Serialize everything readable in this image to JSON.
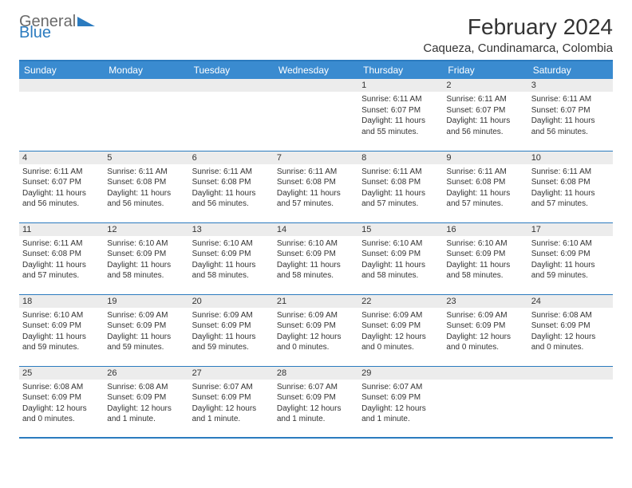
{
  "logo": {
    "word1": "General",
    "word2": "Blue",
    "triangle_color": "#2b7bbf"
  },
  "title": "February 2024",
  "location": "Caqueza, Cundinamarca, Colombia",
  "colors": {
    "header_bg": "#3a8bd0",
    "border": "#2b7bbf",
    "daynum_bg": "#ececec",
    "text": "#333333",
    "logo_gray": "#6a6a6a"
  },
  "weekdays": [
    "Sunday",
    "Monday",
    "Tuesday",
    "Wednesday",
    "Thursday",
    "Friday",
    "Saturday"
  ],
  "weeks": [
    [
      {
        "n": "",
        "sr": "",
        "ss": "",
        "dl1": "",
        "dl2": ""
      },
      {
        "n": "",
        "sr": "",
        "ss": "",
        "dl1": "",
        "dl2": ""
      },
      {
        "n": "",
        "sr": "",
        "ss": "",
        "dl1": "",
        "dl2": ""
      },
      {
        "n": "",
        "sr": "",
        "ss": "",
        "dl1": "",
        "dl2": ""
      },
      {
        "n": "1",
        "sr": "Sunrise: 6:11 AM",
        "ss": "Sunset: 6:07 PM",
        "dl1": "Daylight: 11 hours",
        "dl2": "and 55 minutes."
      },
      {
        "n": "2",
        "sr": "Sunrise: 6:11 AM",
        "ss": "Sunset: 6:07 PM",
        "dl1": "Daylight: 11 hours",
        "dl2": "and 56 minutes."
      },
      {
        "n": "3",
        "sr": "Sunrise: 6:11 AM",
        "ss": "Sunset: 6:07 PM",
        "dl1": "Daylight: 11 hours",
        "dl2": "and 56 minutes."
      }
    ],
    [
      {
        "n": "4",
        "sr": "Sunrise: 6:11 AM",
        "ss": "Sunset: 6:07 PM",
        "dl1": "Daylight: 11 hours",
        "dl2": "and 56 minutes."
      },
      {
        "n": "5",
        "sr": "Sunrise: 6:11 AM",
        "ss": "Sunset: 6:08 PM",
        "dl1": "Daylight: 11 hours",
        "dl2": "and 56 minutes."
      },
      {
        "n": "6",
        "sr": "Sunrise: 6:11 AM",
        "ss": "Sunset: 6:08 PM",
        "dl1": "Daylight: 11 hours",
        "dl2": "and 56 minutes."
      },
      {
        "n": "7",
        "sr": "Sunrise: 6:11 AM",
        "ss": "Sunset: 6:08 PM",
        "dl1": "Daylight: 11 hours",
        "dl2": "and 57 minutes."
      },
      {
        "n": "8",
        "sr": "Sunrise: 6:11 AM",
        "ss": "Sunset: 6:08 PM",
        "dl1": "Daylight: 11 hours",
        "dl2": "and 57 minutes."
      },
      {
        "n": "9",
        "sr": "Sunrise: 6:11 AM",
        "ss": "Sunset: 6:08 PM",
        "dl1": "Daylight: 11 hours",
        "dl2": "and 57 minutes."
      },
      {
        "n": "10",
        "sr": "Sunrise: 6:11 AM",
        "ss": "Sunset: 6:08 PM",
        "dl1": "Daylight: 11 hours",
        "dl2": "and 57 minutes."
      }
    ],
    [
      {
        "n": "11",
        "sr": "Sunrise: 6:11 AM",
        "ss": "Sunset: 6:08 PM",
        "dl1": "Daylight: 11 hours",
        "dl2": "and 57 minutes."
      },
      {
        "n": "12",
        "sr": "Sunrise: 6:10 AM",
        "ss": "Sunset: 6:09 PM",
        "dl1": "Daylight: 11 hours",
        "dl2": "and 58 minutes."
      },
      {
        "n": "13",
        "sr": "Sunrise: 6:10 AM",
        "ss": "Sunset: 6:09 PM",
        "dl1": "Daylight: 11 hours",
        "dl2": "and 58 minutes."
      },
      {
        "n": "14",
        "sr": "Sunrise: 6:10 AM",
        "ss": "Sunset: 6:09 PM",
        "dl1": "Daylight: 11 hours",
        "dl2": "and 58 minutes."
      },
      {
        "n": "15",
        "sr": "Sunrise: 6:10 AM",
        "ss": "Sunset: 6:09 PM",
        "dl1": "Daylight: 11 hours",
        "dl2": "and 58 minutes."
      },
      {
        "n": "16",
        "sr": "Sunrise: 6:10 AM",
        "ss": "Sunset: 6:09 PM",
        "dl1": "Daylight: 11 hours",
        "dl2": "and 58 minutes."
      },
      {
        "n": "17",
        "sr": "Sunrise: 6:10 AM",
        "ss": "Sunset: 6:09 PM",
        "dl1": "Daylight: 11 hours",
        "dl2": "and 59 minutes."
      }
    ],
    [
      {
        "n": "18",
        "sr": "Sunrise: 6:10 AM",
        "ss": "Sunset: 6:09 PM",
        "dl1": "Daylight: 11 hours",
        "dl2": "and 59 minutes."
      },
      {
        "n": "19",
        "sr": "Sunrise: 6:09 AM",
        "ss": "Sunset: 6:09 PM",
        "dl1": "Daylight: 11 hours",
        "dl2": "and 59 minutes."
      },
      {
        "n": "20",
        "sr": "Sunrise: 6:09 AM",
        "ss": "Sunset: 6:09 PM",
        "dl1": "Daylight: 11 hours",
        "dl2": "and 59 minutes."
      },
      {
        "n": "21",
        "sr": "Sunrise: 6:09 AM",
        "ss": "Sunset: 6:09 PM",
        "dl1": "Daylight: 12 hours",
        "dl2": "and 0 minutes."
      },
      {
        "n": "22",
        "sr": "Sunrise: 6:09 AM",
        "ss": "Sunset: 6:09 PM",
        "dl1": "Daylight: 12 hours",
        "dl2": "and 0 minutes."
      },
      {
        "n": "23",
        "sr": "Sunrise: 6:09 AM",
        "ss": "Sunset: 6:09 PM",
        "dl1": "Daylight: 12 hours",
        "dl2": "and 0 minutes."
      },
      {
        "n": "24",
        "sr": "Sunrise: 6:08 AM",
        "ss": "Sunset: 6:09 PM",
        "dl1": "Daylight: 12 hours",
        "dl2": "and 0 minutes."
      }
    ],
    [
      {
        "n": "25",
        "sr": "Sunrise: 6:08 AM",
        "ss": "Sunset: 6:09 PM",
        "dl1": "Daylight: 12 hours",
        "dl2": "and 0 minutes."
      },
      {
        "n": "26",
        "sr": "Sunrise: 6:08 AM",
        "ss": "Sunset: 6:09 PM",
        "dl1": "Daylight: 12 hours",
        "dl2": "and 1 minute."
      },
      {
        "n": "27",
        "sr": "Sunrise: 6:07 AM",
        "ss": "Sunset: 6:09 PM",
        "dl1": "Daylight: 12 hours",
        "dl2": "and 1 minute."
      },
      {
        "n": "28",
        "sr": "Sunrise: 6:07 AM",
        "ss": "Sunset: 6:09 PM",
        "dl1": "Daylight: 12 hours",
        "dl2": "and 1 minute."
      },
      {
        "n": "29",
        "sr": "Sunrise: 6:07 AM",
        "ss": "Sunset: 6:09 PM",
        "dl1": "Daylight: 12 hours",
        "dl2": "and 1 minute."
      },
      {
        "n": "",
        "sr": "",
        "ss": "",
        "dl1": "",
        "dl2": ""
      },
      {
        "n": "",
        "sr": "",
        "ss": "",
        "dl1": "",
        "dl2": ""
      }
    ]
  ]
}
